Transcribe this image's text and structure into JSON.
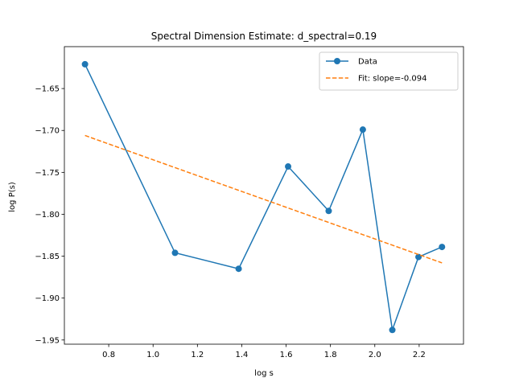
{
  "chart_data": {
    "type": "line",
    "title": "Spectral Dimension Estimate: d_spectral=0.19",
    "xlabel": "log s",
    "ylabel": "log P(s)",
    "xlim": [
      0.6,
      2.4
    ],
    "ylim": [
      -1.955,
      -1.6
    ],
    "xticks": [
      0.8,
      1.0,
      1.2,
      1.4,
      1.6,
      1.8,
      2.0,
      2.2
    ],
    "yticks": [
      -1.65,
      -1.7,
      -1.75,
      -1.8,
      -1.85,
      -1.9,
      -1.95
    ],
    "xtick_labels": [
      "0.8",
      "1.0",
      "1.2",
      "1.4",
      "1.6",
      "1.8",
      "2.0",
      "2.2"
    ],
    "ytick_labels": [
      "−1.65",
      "−1.70",
      "−1.75",
      "−1.80",
      "−1.85",
      "−1.90",
      "−1.95"
    ],
    "grid": false,
    "legend_position": "top-right",
    "series": [
      {
        "name": "Data",
        "style": "line-marker",
        "color": "#1f77b4",
        "x": [
          0.693,
          1.099,
          1.386,
          1.609,
          1.792,
          1.946,
          2.079,
          2.197,
          2.303
        ],
        "y": [
          -1.621,
          -1.846,
          -1.865,
          -1.743,
          -1.796,
          -1.699,
          -1.938,
          -1.851,
          -1.839
        ]
      },
      {
        "name": "Fit: slope=-0.094",
        "style": "dashed",
        "color": "#ff7f0e",
        "x": [
          0.693,
          2.303
        ],
        "y": [
          -1.706,
          -1.858
        ]
      }
    ]
  }
}
